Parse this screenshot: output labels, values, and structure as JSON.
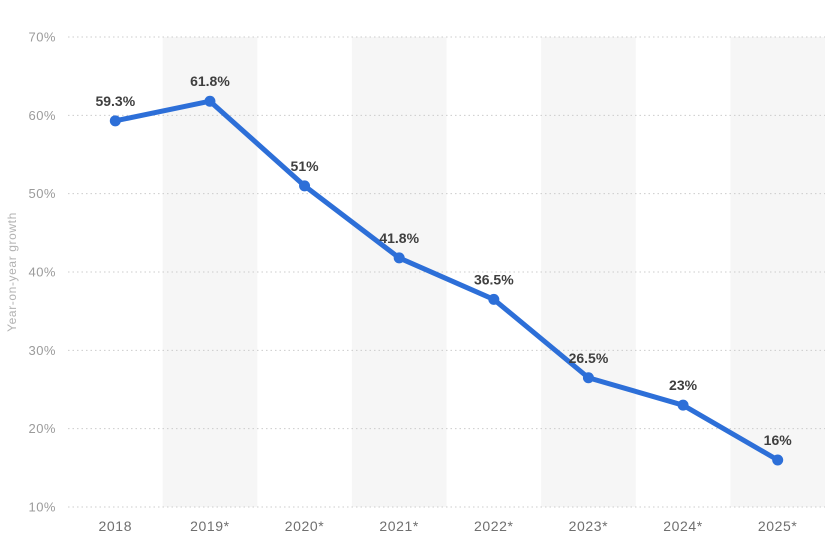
{
  "chart_data": {
    "type": "line",
    "title": "",
    "xlabel": "",
    "ylabel": "Year-on-year growth",
    "categories": [
      "2018",
      "2019*",
      "2020*",
      "2021*",
      "2022*",
      "2023*",
      "2024*",
      "2025*"
    ],
    "values": [
      59.3,
      61.8,
      51,
      41.8,
      36.5,
      26.5,
      23,
      16
    ],
    "data_labels": [
      "59.3%",
      "61.8%",
      "51%",
      "41.8%",
      "36.5%",
      "26.5%",
      "23%",
      "16%"
    ],
    "y_ticks": [
      "70%",
      "60%",
      "50%",
      "40%",
      "30%",
      "20%",
      "10%"
    ],
    "ylim": [
      10,
      70
    ],
    "grid": "horizontal-dotted",
    "legend": "none",
    "shaded_band_categories": [
      "2019*",
      "2021*",
      "2023*",
      "2025*"
    ],
    "colors": {
      "line": "#2d6fd8",
      "marker": "#2d6fd8",
      "band": "#f6f6f6",
      "gridline": "#cccccc",
      "y_tick_label": "#9b9b9b",
      "x_tick_label": "#6f6f6f",
      "data_label": "#3f3f3f",
      "axis_title": "#b2b2b2",
      "background": "#ffffff"
    }
  }
}
